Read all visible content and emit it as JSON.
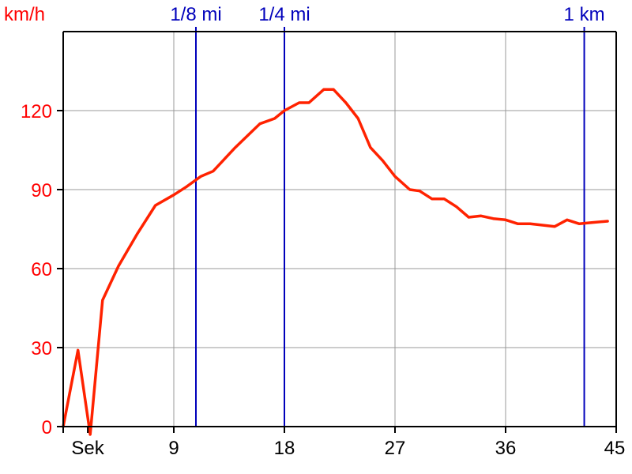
{
  "chart_data": {
    "type": "line",
    "ylabel": "km/h",
    "x_tick_labels": [
      "Sek",
      "9",
      "18",
      "27",
      "36",
      "45"
    ],
    "x_tick_values": [
      2,
      9,
      18,
      27,
      36,
      45
    ],
    "y_tick_labels": [
      "0",
      "30",
      "60",
      "90",
      "120"
    ],
    "y_tick_values": [
      0,
      30,
      60,
      90,
      120
    ],
    "xlim": [
      0,
      45
    ],
    "ylim": [
      0,
      150
    ],
    "grid": true,
    "colors": {
      "series": "#ff2200",
      "y_axis_text": "#ff0000",
      "marker_lines": "#0000bb",
      "marker_text": "#0000bb",
      "grid": "#999999",
      "axis": "#000000"
    },
    "distance_markers": [
      {
        "label": "1/8 mi",
        "x": 10.8
      },
      {
        "label": "1/4 mi",
        "x": 18.0
      },
      {
        "label": "1 km",
        "x": 42.4
      }
    ],
    "series": [
      {
        "x": [
          0,
          1.2,
          2.2,
          3.2,
          4.5,
          6,
          7.5,
          9,
          10,
          11.2,
          12.2,
          14,
          16,
          17.2,
          18,
          19.2,
          20,
          21.2,
          22,
          23,
          24,
          25,
          26,
          27,
          28.2,
          29,
          30,
          31,
          32,
          33,
          34,
          35,
          36,
          37,
          38,
          39,
          40,
          41,
          42,
          43,
          44.3
        ],
        "y": [
          0,
          29,
          -3,
          48,
          61,
          73,
          84,
          88,
          91,
          95,
          97,
          106,
          115,
          117,
          120,
          123,
          123,
          128,
          128,
          123,
          117,
          106,
          101,
          95,
          90,
          89.5,
          86.5,
          86.5,
          83.5,
          79.5,
          80,
          79,
          78.5,
          77,
          77,
          76.5,
          76,
          78.5,
          77,
          77.5,
          78
        ]
      }
    ]
  }
}
